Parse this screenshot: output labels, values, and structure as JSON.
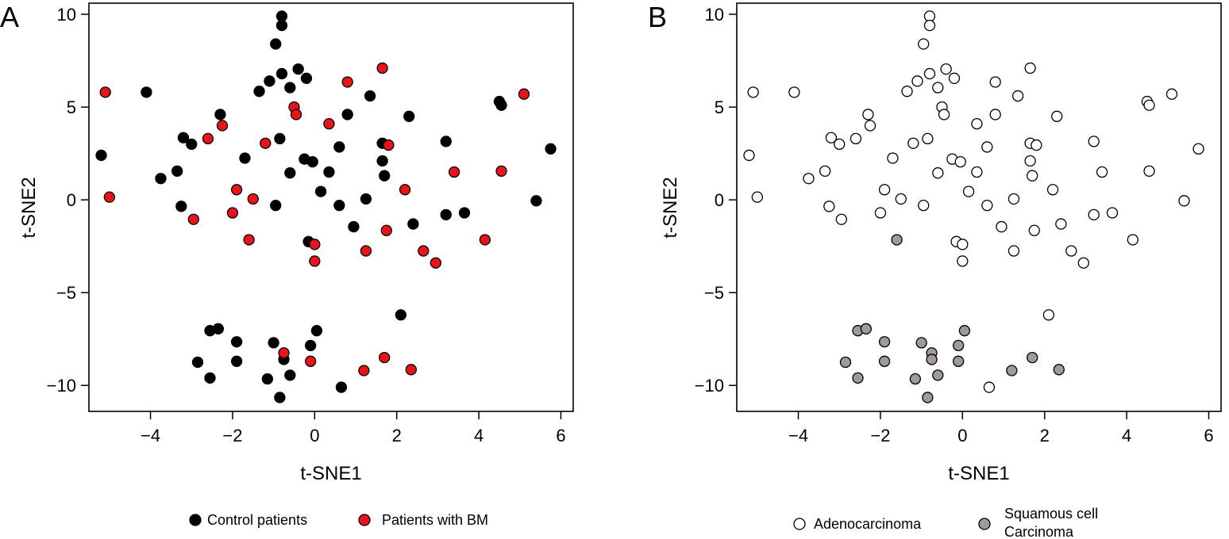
{
  "chart_data": [
    {
      "type": "scatter",
      "panel_label": "A",
      "xlabel": "t-SNE1",
      "ylabel": "t-SNE2",
      "xlim": [
        -5.5,
        6.3
      ],
      "ylim": [
        -11.4,
        10.6
      ],
      "xticks": [
        -4,
        -2,
        0,
        2,
        4,
        6
      ],
      "yticks": [
        -10,
        -5,
        0,
        5,
        10
      ],
      "grid": false,
      "legend_position": "bottom",
      "series": [
        {
          "name": "Control patients",
          "color": "#000000",
          "points": [
            [
              -0.8,
              9.9
            ],
            [
              -0.8,
              9.4
            ],
            [
              -0.95,
              8.4
            ],
            [
              -0.4,
              7.05
            ],
            [
              -0.8,
              6.8
            ],
            [
              -1.1,
              6.4
            ],
            [
              -0.2,
              6.55
            ],
            [
              -0.6,
              6.05
            ],
            [
              -1.35,
              5.85
            ],
            [
              -4.1,
              5.8
            ],
            [
              1.35,
              5.6
            ],
            [
              4.5,
              5.3
            ],
            [
              4.55,
              5.1
            ],
            [
              -2.3,
              4.6
            ],
            [
              0.8,
              4.6
            ],
            [
              2.3,
              4.5
            ],
            [
              -3.2,
              3.35
            ],
            [
              -0.85,
              3.3
            ],
            [
              3.2,
              3.15
            ],
            [
              -3.0,
              3.0
            ],
            [
              1.65,
              3.05
            ],
            [
              0.6,
              2.85
            ],
            [
              5.75,
              2.75
            ],
            [
              -5.2,
              2.4
            ],
            [
              -1.7,
              2.25
            ],
            [
              -0.25,
              2.2
            ],
            [
              -0.05,
              2.05
            ],
            [
              1.65,
              2.1
            ],
            [
              -3.35,
              1.55
            ],
            [
              -0.6,
              1.45
            ],
            [
              0.35,
              1.5
            ],
            [
              1.7,
              1.3
            ],
            [
              -3.75,
              1.15
            ],
            [
              0.15,
              0.45
            ],
            [
              1.25,
              0.05
            ],
            [
              5.4,
              -0.05
            ],
            [
              -0.95,
              -0.3
            ],
            [
              0.6,
              -0.3
            ],
            [
              -3.25,
              -0.35
            ],
            [
              3.65,
              -0.7
            ],
            [
              3.2,
              -0.8
            ],
            [
              2.4,
              -1.3
            ],
            [
              0.95,
              -1.45
            ],
            [
              -0.15,
              -2.25
            ],
            [
              2.1,
              -6.2
            ],
            [
              -2.55,
              -7.05
            ],
            [
              -2.35,
              -6.95
            ],
            [
              0.05,
              -7.05
            ],
            [
              -1.9,
              -7.65
            ],
            [
              -1.0,
              -7.7
            ],
            [
              -0.1,
              -7.85
            ],
            [
              -2.85,
              -8.75
            ],
            [
              -1.9,
              -8.7
            ],
            [
              -0.75,
              -8.6
            ],
            [
              -2.55,
              -9.6
            ],
            [
              -1.15,
              -9.65
            ],
            [
              -0.6,
              -9.45
            ],
            [
              0.65,
              -10.1
            ],
            [
              -0.85,
              -10.65
            ]
          ]
        },
        {
          "name": "Patients with BM",
          "color": "#e8141b",
          "points": [
            [
              -5.1,
              5.8
            ],
            [
              1.65,
              7.1
            ],
            [
              0.8,
              6.35
            ],
            [
              5.1,
              5.7
            ],
            [
              -0.5,
              5.0
            ],
            [
              -0.45,
              4.6
            ],
            [
              -2.25,
              4.0
            ],
            [
              0.35,
              4.1
            ],
            [
              -2.6,
              3.3
            ],
            [
              -1.2,
              3.05
            ],
            [
              1.8,
              2.95
            ],
            [
              3.4,
              1.5
            ],
            [
              4.55,
              1.55
            ],
            [
              -5.0,
              0.15
            ],
            [
              -1.9,
              0.55
            ],
            [
              2.2,
              0.55
            ],
            [
              -1.5,
              0.05
            ],
            [
              -2.0,
              -0.7
            ],
            [
              -2.95,
              -1.05
            ],
            [
              1.75,
              -1.65
            ],
            [
              4.15,
              -2.15
            ],
            [
              -1.6,
              -2.15
            ],
            [
              0.0,
              -2.4
            ],
            [
              1.25,
              -2.75
            ],
            [
              2.65,
              -2.75
            ],
            [
              0.0,
              -3.3
            ],
            [
              2.95,
              -3.4
            ],
            [
              -0.75,
              -8.25
            ],
            [
              1.7,
              -8.5
            ],
            [
              -0.1,
              -8.7
            ],
            [
              1.2,
              -9.2
            ],
            [
              2.35,
              -9.15
            ]
          ]
        }
      ]
    },
    {
      "type": "scatter",
      "panel_label": "B",
      "xlabel": "t-SNE1",
      "ylabel": "t-SNE2",
      "xlim": [
        -5.5,
        6.3
      ],
      "ylim": [
        -11.4,
        10.6
      ],
      "xticks": [
        -4,
        -2,
        0,
        2,
        4,
        6
      ],
      "yticks": [
        -10,
        -5,
        0,
        5,
        10
      ],
      "grid": false,
      "legend_position": "bottom",
      "series": [
        {
          "name": "Adenocarcinoma",
          "color": "#ffffff",
          "points": [
            [
              -0.8,
              9.9
            ],
            [
              -0.8,
              9.4
            ],
            [
              -0.95,
              8.4
            ],
            [
              -0.4,
              7.05
            ],
            [
              -0.8,
              6.8
            ],
            [
              -1.1,
              6.4
            ],
            [
              -0.2,
              6.55
            ],
            [
              -0.6,
              6.05
            ],
            [
              -1.35,
              5.85
            ],
            [
              -4.1,
              5.8
            ],
            [
              1.35,
              5.6
            ],
            [
              4.5,
              5.3
            ],
            [
              4.55,
              5.1
            ],
            [
              -2.3,
              4.6
            ],
            [
              0.8,
              4.6
            ],
            [
              2.3,
              4.5
            ],
            [
              -3.2,
              3.35
            ],
            [
              -0.85,
              3.3
            ],
            [
              3.2,
              3.15
            ],
            [
              -3.0,
              3.0
            ],
            [
              1.65,
              3.05
            ],
            [
              0.6,
              2.85
            ],
            [
              5.75,
              2.75
            ],
            [
              -5.2,
              2.4
            ],
            [
              -1.7,
              2.25
            ],
            [
              -0.25,
              2.2
            ],
            [
              -0.05,
              2.05
            ],
            [
              1.65,
              2.1
            ],
            [
              -3.35,
              1.55
            ],
            [
              -0.6,
              1.45
            ],
            [
              0.35,
              1.5
            ],
            [
              1.7,
              1.3
            ],
            [
              -3.75,
              1.15
            ],
            [
              0.15,
              0.45
            ],
            [
              1.25,
              0.05
            ],
            [
              5.4,
              -0.05
            ],
            [
              -0.95,
              -0.3
            ],
            [
              0.6,
              -0.3
            ],
            [
              -3.25,
              -0.35
            ],
            [
              3.65,
              -0.7
            ],
            [
              3.2,
              -0.8
            ],
            [
              2.4,
              -1.3
            ],
            [
              0.95,
              -1.45
            ],
            [
              -0.15,
              -2.25
            ],
            [
              -5.1,
              5.8
            ],
            [
              1.65,
              7.1
            ],
            [
              0.8,
              6.35
            ],
            [
              5.1,
              5.7
            ],
            [
              -0.5,
              5.0
            ],
            [
              -0.45,
              4.6
            ],
            [
              -2.25,
              4.0
            ],
            [
              0.35,
              4.1
            ],
            [
              -2.6,
              3.3
            ],
            [
              -1.2,
              3.05
            ],
            [
              1.8,
              2.95
            ],
            [
              3.4,
              1.5
            ],
            [
              4.55,
              1.55
            ],
            [
              -5.0,
              0.15
            ],
            [
              -1.9,
              0.55
            ],
            [
              2.2,
              0.55
            ],
            [
              -1.5,
              0.05
            ],
            [
              -2.0,
              -0.7
            ],
            [
              -2.95,
              -1.05
            ],
            [
              1.75,
              -1.65
            ],
            [
              4.15,
              -2.15
            ],
            [
              0.0,
              -2.4
            ],
            [
              1.25,
              -2.75
            ],
            [
              2.65,
              -2.75
            ],
            [
              0.0,
              -3.3
            ],
            [
              2.95,
              -3.4
            ],
            [
              2.1,
              -6.2
            ],
            [
              0.65,
              -10.1
            ]
          ]
        },
        {
          "name": "Squamous cell Carcinoma",
          "color": "#a19a98",
          "points": [
            [
              -1.6,
              -2.15
            ],
            [
              -2.55,
              -7.05
            ],
            [
              -2.35,
              -6.95
            ],
            [
              0.05,
              -7.05
            ],
            [
              -1.9,
              -7.65
            ],
            [
              -1.0,
              -7.7
            ],
            [
              -0.1,
              -7.85
            ],
            [
              -0.75,
              -8.25
            ],
            [
              -2.85,
              -8.75
            ],
            [
              -1.9,
              -8.7
            ],
            [
              -0.75,
              -8.6
            ],
            [
              -0.1,
              -8.7
            ],
            [
              1.7,
              -8.5
            ],
            [
              1.2,
              -9.2
            ],
            [
              2.35,
              -9.15
            ],
            [
              -2.55,
              -9.6
            ],
            [
              -1.15,
              -9.65
            ],
            [
              -0.6,
              -9.45
            ],
            [
              -0.85,
              -10.65
            ]
          ]
        }
      ]
    }
  ],
  "legend": {
    "a": [
      {
        "label": "Control patients",
        "fill": "#000000"
      },
      {
        "label": "Patients with BM",
        "fill": "#e8141b"
      }
    ],
    "b": [
      {
        "label": "Adenocarcinoma",
        "fill": "#ffffff"
      },
      {
        "label_line1": "Squamous cell",
        "label_line2": "Carcinoma",
        "fill": "#a19a98"
      }
    ]
  }
}
